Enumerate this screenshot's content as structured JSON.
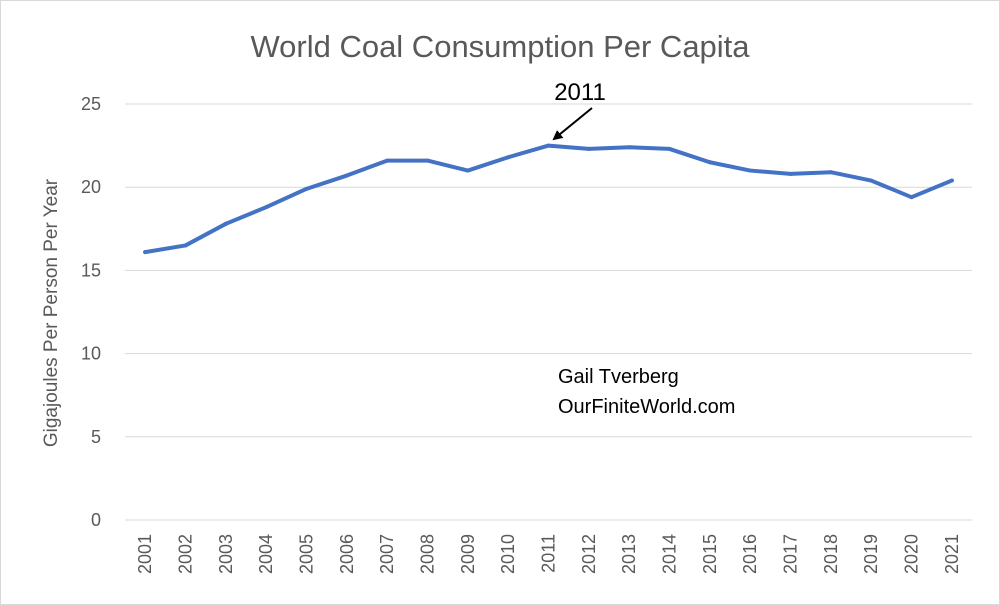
{
  "chart_data": {
    "type": "line",
    "title": "World Coal Consumption Per Capita",
    "ylabel": "Gigajoules Per Person Per Year",
    "xlabel": "",
    "categories": [
      "2001",
      "2002",
      "2003",
      "2004",
      "2005",
      "2006",
      "2007",
      "2008",
      "2009",
      "2010",
      "2011",
      "2012",
      "2013",
      "2014",
      "2015",
      "2016",
      "2017",
      "2018",
      "2019",
      "2020",
      "2021"
    ],
    "values": [
      16.1,
      16.5,
      17.8,
      18.8,
      19.9,
      20.7,
      21.6,
      21.6,
      21.0,
      21.8,
      22.5,
      22.3,
      22.4,
      22.3,
      21.5,
      21.0,
      20.8,
      20.9,
      20.4,
      19.4,
      20.4
    ],
    "ylim": [
      0,
      25
    ],
    "yticks": [
      "0",
      "5",
      "10",
      "15",
      "20",
      "25"
    ],
    "grid": true,
    "legend": "none",
    "color": "#4472c4",
    "annotation": {
      "text": "2011",
      "target_category": "2011"
    },
    "credit": [
      "Gail Tverberg",
      "OurFiniteWorld.com"
    ]
  }
}
